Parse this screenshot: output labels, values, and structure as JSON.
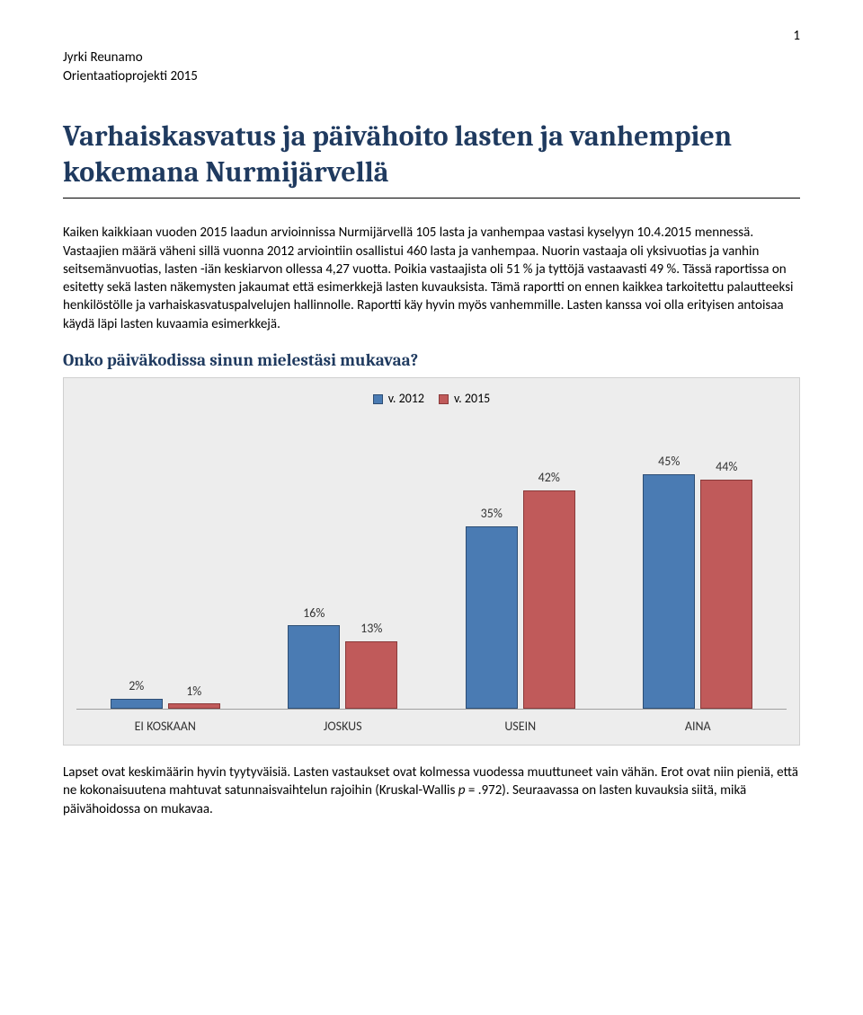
{
  "page_number": "1",
  "author": "Jyrki Reunamo",
  "project": "Orientaatioprojekti 2015",
  "main_title": "Varhaiskasvatus ja päivähoito lasten ja vanhempien kokemana Nurmijärvellä",
  "intro_paragraph": "Kaiken kaikkiaan vuoden 2015 laadun arvioinnissa Nurmijärvellä 105 lasta ja vanhempaa vastasi kyselyyn 10.4.2015 mennessä. Vastaajien määrä väheni sillä vuonna 2012 arviointiin osallistui 460 lasta ja vanhempaa.  Nuorin vastaaja oli yksivuotias ja vanhin seitsemänvuotias, lasten -iän keskiarvon ollessa 4,27 vuotta. Poikia vastaajista oli 51 % ja tyttöjä vastaavasti 49 %. Tässä raportissa on esitetty sekä lasten näkemysten jakaumat että esimerkkejä lasten kuvauksista. Tämä raportti on ennen kaikkea tarkoitettu palautteeksi henkilöstölle ja varhaiskasvatuspalvelujen hallinnolle. Raportti käy hyvin myös vanhemmille. Lasten kanssa voi olla erityisen antoisaa käydä läpi lasten kuvaamia esimerkkejä.",
  "chart_heading": "Onko päiväkodissa sinun mielestäsi mukavaa?",
  "chart": {
    "type": "bar",
    "background_color": "#ededed",
    "border_color": "#cfcfcf",
    "max_value": 50,
    "legend": [
      {
        "label": "v. 2012",
        "color": "#4a7bb3",
        "border": "#2d4d73"
      },
      {
        "label": "v. 2015",
        "color": "#c05a5a",
        "border": "#8a3a3a"
      }
    ],
    "categories": [
      "EI KOSKAAN",
      "JOSKUS",
      "USEIN",
      "AINA"
    ],
    "series": [
      {
        "name": "v. 2012",
        "color": "#4a7bb3",
        "border": "#2d4d73",
        "values": [
          2,
          16,
          35,
          45
        ],
        "labels": [
          "2%",
          "16%",
          "35%",
          "45%"
        ]
      },
      {
        "name": "v. 2015",
        "color": "#c05a5a",
        "border": "#8a3a3a",
        "values": [
          1,
          13,
          42,
          44
        ],
        "labels": [
          "1%",
          "13%",
          "42%",
          "44%"
        ]
      }
    ],
    "axis_color": "#a0a0a0",
    "label_fontsize": 14
  },
  "caption_before_italic": "Lapset ovat keskimäärin hyvin tyytyväisiä. Lasten vastaukset ovat kolmessa vuodessa muuttuneet vain vähän. Erot ovat niin pieniä, että ne kokonaisuutena mahtuvat satunnaisvaihtelun rajoihin (Kruskal-Wallis ",
  "caption_italic": "p",
  "caption_after_italic": " = .972).  Seuraavassa on lasten kuvauksia siitä, mikä päivähoidossa on mukavaa."
}
